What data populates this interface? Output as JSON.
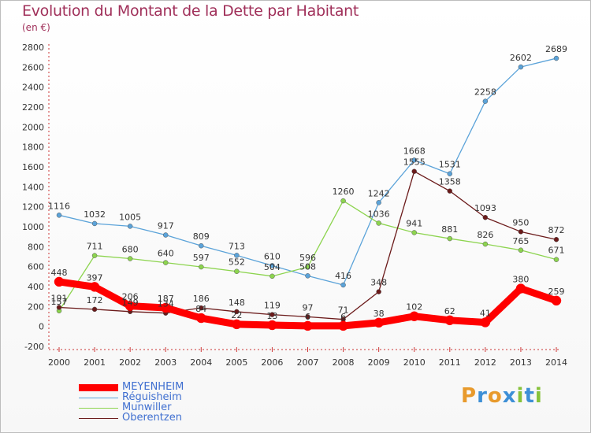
{
  "title": "Evolution du Montant de la Dette par Habitant",
  "subtitle": "(en €)",
  "logo": {
    "letters": [
      "P",
      "r",
      "o",
      "x",
      "i",
      "t",
      "i"
    ],
    "colors": [
      "#e89a2c",
      "#3d8fd6",
      "#e89a2c",
      "#3d8fd6",
      "#86c23a",
      "#3d8fd6",
      "#86c23a"
    ]
  },
  "chart_data": {
    "type": "line",
    "categories": [
      "2000",
      "2001",
      "2002",
      "2003",
      "2004",
      "2005",
      "2006",
      "2007",
      "2008",
      "2009",
      "2010",
      "2011",
      "2012",
      "2013",
      "2014"
    ],
    "ylim": [
      -200,
      2800
    ],
    "yticks": [
      "-200",
      "0",
      "200",
      "400",
      "600",
      "800",
      "1000",
      "1200",
      "1400",
      "1600",
      "1800",
      "2000",
      "2200",
      "2400",
      "2600",
      "2800"
    ],
    "grid": false,
    "legend_placement": "bottom-left",
    "series": [
      {
        "name": "MEYENHEIM",
        "color": "#ff0000",
        "width": 9,
        "values": [
          448,
          397,
          206,
          187,
          84,
          22,
          13,
          6,
          6,
          38,
          102,
          62,
          41,
          380,
          259
        ],
        "labels": [
          "448",
          "397",
          "206",
          "187",
          "",
          "",
          "",
          "",
          "",
          "38",
          "102",
          "62",
          "41",
          "380",
          "259"
        ]
      },
      {
        "name": "Réguisheim",
        "color": "#5ba3d9",
        "width": 1.3,
        "values": [
          1116,
          1032,
          1005,
          917,
          809,
          713,
          610,
          508,
          416,
          1242,
          1668,
          1531,
          2258,
          2602,
          2689
        ],
        "labels": [
          "1116",
          "1032",
          "1005",
          "917",
          "809",
          "713",
          "610",
          "508",
          "416",
          "1242",
          "1668",
          "1531",
          "2258",
          "2602",
          "2689"
        ]
      },
      {
        "name": "Munwiller",
        "color": "#8cd44e",
        "width": 1.3,
        "values": [
          157,
          711,
          680,
          640,
          597,
          552,
          504,
          596,
          1260,
          1036,
          941,
          881,
          826,
          765,
          671
        ],
        "labels": [
          "157",
          "711",
          "680",
          "640",
          "597",
          "552",
          "504",
          "596",
          "1260",
          "1036",
          "941",
          "881",
          "826",
          "765",
          "671"
        ]
      },
      {
        "name": "Oberentzen",
        "color": "#6b1a1a",
        "width": 1.3,
        "values": [
          191,
          172,
          149,
          134,
          186,
          148,
          119,
          97,
          71,
          348,
          1555,
          1358,
          1093,
          950,
          872
        ],
        "labels": [
          "191",
          "172",
          "149",
          "134",
          "186",
          "148",
          "119",
          "97",
          "71",
          "348",
          "1555",
          "1358",
          "1093",
          "950",
          "872"
        ]
      }
    ],
    "extra_labels": [
      {
        "series": 0,
        "index": 4,
        "text": "84"
      },
      {
        "series": 0,
        "index": 5,
        "text": "22"
      },
      {
        "series": 0,
        "index": 6,
        "text": "13"
      },
      {
        "series": 0,
        "index": 7,
        "text": "6"
      },
      {
        "series": 0,
        "index": 8,
        "text": "6"
      }
    ]
  }
}
